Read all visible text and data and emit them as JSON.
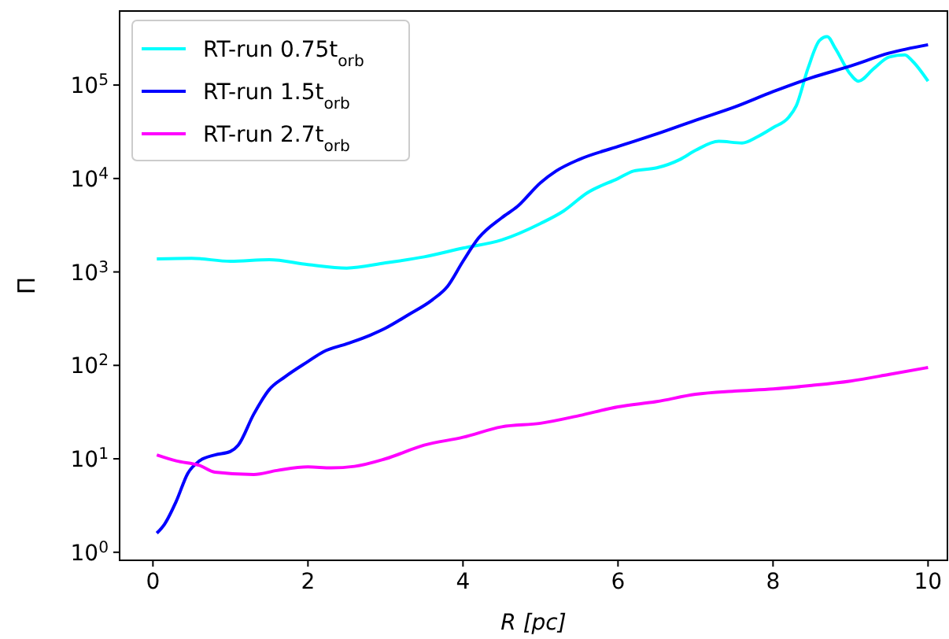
{
  "chart_data": {
    "type": "line",
    "xlabel": "R  [pc]",
    "ylabel": "Π",
    "log": "y",
    "grid": false,
    "legend": "top left",
    "line_style": "solid",
    "xlim": [
      -0.43,
      10.25
    ],
    "xticks": [
      0,
      2,
      4,
      6,
      8,
      10
    ],
    "ylim": [
      0.82,
      620000
    ],
    "yticks": [
      {
        "value": 1,
        "label": "10$^{0}$"
      },
      {
        "value": 10,
        "label": "10$^{1}$"
      },
      {
        "value": 100,
        "label": "10$^{2}$"
      },
      {
        "value": 1000,
        "label": "10$^{3}$"
      },
      {
        "value": 10000,
        "label": "10$^{4}$"
      },
      {
        "value": 100000,
        "label": "10$^{5}$"
      }
    ],
    "series": [
      {
        "name": "RT-run 0.75t$_{orb}$",
        "color": "#00ffff",
        "x": [
          0.05,
          0.5,
          1,
          1.5,
          2,
          2.5,
          3,
          3.5,
          4,
          4.5,
          5,
          5.3,
          5.6,
          6,
          6.2,
          6.5,
          6.8,
          7,
          7.3,
          7.6,
          7.8,
          8,
          8.2,
          8.3,
          8.45,
          8.6,
          8.7,
          8.8,
          9,
          9.1,
          9.3,
          9.5,
          9.7,
          9.8,
          10
        ],
        "values": [
          1380,
          1400,
          1300,
          1350,
          1200,
          1100,
          1250,
          1450,
          1800,
          2200,
          3300,
          4500,
          7000,
          10000,
          12000,
          13000,
          16000,
          20000,
          25000,
          24000,
          28000,
          35000,
          45000,
          60000,
          150000,
          300000,
          330000,
          250000,
          130000,
          110000,
          150000,
          200000,
          210000,
          180000,
          110000
        ]
      },
      {
        "name": "RT-run 1.5t$_{orb}$",
        "color": "#0000ff",
        "x": [
          0.05,
          0.15,
          0.3,
          0.45,
          0.6,
          0.8,
          1,
          1.1,
          1.3,
          1.5,
          1.7,
          2,
          2.2,
          2.5,
          2.8,
          3,
          3.3,
          3.6,
          3.8,
          4,
          4.2,
          4.5,
          4.7,
          5,
          5.2,
          5.5,
          6,
          6.5,
          7,
          7.5,
          8,
          8.5,
          9,
          9.5,
          10
        ],
        "values": [
          1.6,
          2.0,
          3.5,
          7,
          9.5,
          11,
          12,
          14,
          30,
          55,
          75,
          110,
          140,
          170,
          210,
          250,
          350,
          500,
          700,
          1300,
          2300,
          3800,
          5000,
          9000,
          12000,
          16000,
          22000,
          30000,
          42000,
          58000,
          85000,
          120000,
          160000,
          220000,
          270000
        ]
      },
      {
        "name": "RT-run 2.7t$_{orb}$",
        "color": "#ff00ff",
        "x": [
          0.05,
          0.3,
          0.6,
          0.8,
          1.3,
          1.6,
          2,
          2.3,
          2.6,
          3,
          3.5,
          4,
          4.5,
          5,
          5.5,
          6,
          6.5,
          7,
          7.5,
          8,
          8.5,
          9,
          9.5,
          10
        ],
        "values": [
          11,
          9.5,
          8.5,
          7.2,
          6.8,
          7.5,
          8.2,
          8,
          8.3,
          10,
          14,
          17,
          22,
          24,
          29,
          36,
          41,
          49,
          53,
          56,
          61,
          68,
          80,
          95
        ]
      }
    ]
  }
}
